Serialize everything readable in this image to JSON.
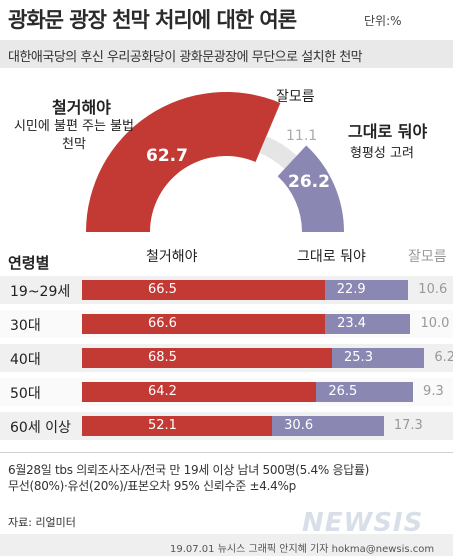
{
  "header": {
    "title": "광화문 광장 천막 처리에 대한 여론",
    "unit": "단위:%",
    "subtitle": "대한애국당의 후신 우리공화당이 광화문광장에 무단으로 설치한 천막"
  },
  "colors": {
    "remove": "#c33a34",
    "keep": "#8b87b3",
    "unknown": "#e5e5e5",
    "unknown_text": "#999999",
    "row_bg": "#f0f0f0"
  },
  "chart_data": [
    {
      "type": "pie",
      "subtype": "half-donut",
      "slices": [
        {
          "name": "철거해야",
          "value": 62.7,
          "desc": "시민에 불편 주는 불법 천막"
        },
        {
          "name": "잘모름",
          "value": 11.1,
          "desc": ""
        },
        {
          "name": "그대로 둬야",
          "value": 26.2,
          "desc": "형평성 고려"
        }
      ]
    },
    {
      "type": "bar",
      "orientation": "horizontal",
      "stacked": true,
      "title": "연령별",
      "categories": [
        "19~29세",
        "30대",
        "40대",
        "50대",
        "60세 이상"
      ],
      "series": [
        {
          "name": "철거해야",
          "values": [
            66.5,
            66.6,
            68.5,
            64.2,
            52.1
          ]
        },
        {
          "name": "그대로 둬야",
          "values": [
            22.9,
            23.4,
            25.3,
            26.5,
            30.6
          ]
        },
        {
          "name": "잘모름",
          "values": [
            10.6,
            10.0,
            6.2,
            9.3,
            17.3
          ]
        }
      ]
    }
  ],
  "notes": {
    "line1": "6월28일  tbs 의뢰조사조사/전국 만 19세 이상 남녀 500명(5.4% 응답률)",
    "line2": "무선(80%)·유선(20%)/표본오차 95% 신뢰수준 ±4.4%p"
  },
  "source": "자료: 리얼미터",
  "footer": "19.07.01  뉴시스 그래픽  안지혜 기자  hokma@newsis.com",
  "watermark": "NEWSIS"
}
